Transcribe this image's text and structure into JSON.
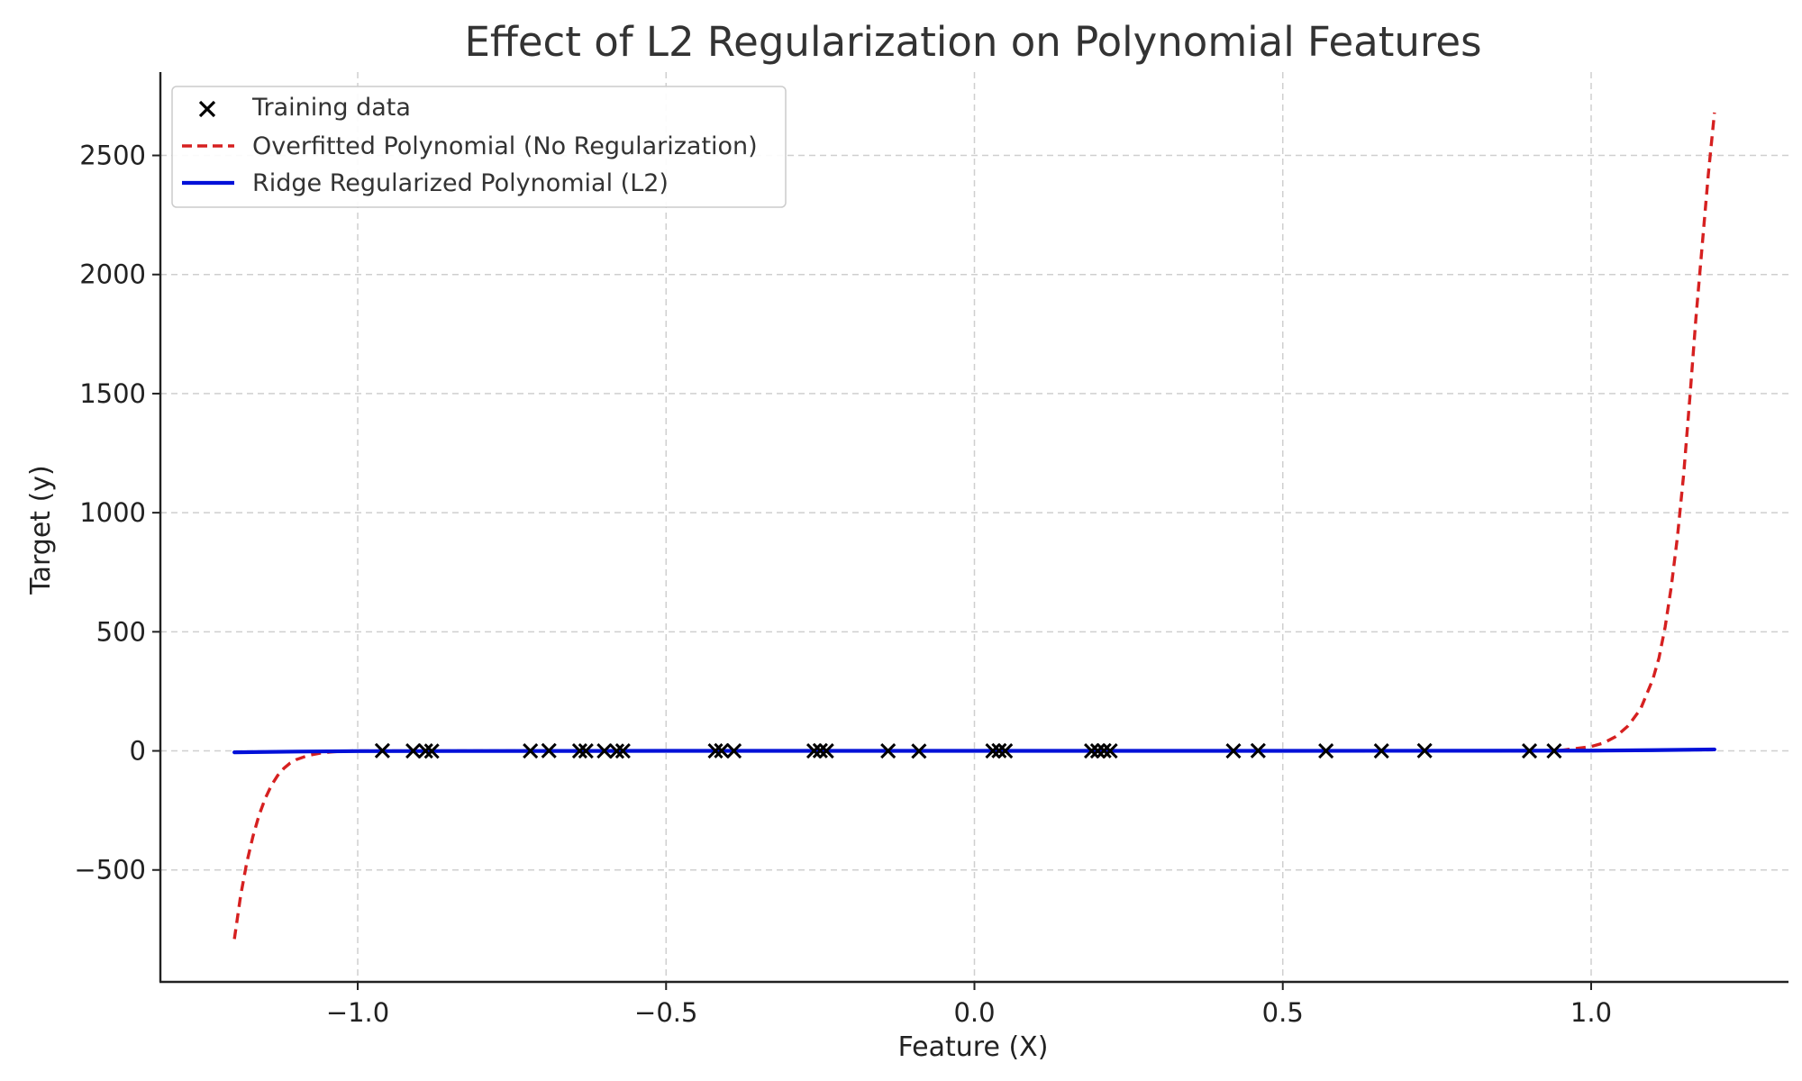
{
  "chart_data": {
    "type": "line",
    "title": "Effect of L2 Regularization on Polynomial Features",
    "xlabel": "Feature (X)",
    "ylabel": "Target (y)",
    "xlim": [
      -1.32,
      1.32
    ],
    "ylim": [
      -970,
      2850
    ],
    "x_ticks": [
      -1.0,
      -0.5,
      0.0,
      0.5,
      1.0
    ],
    "x_tick_labels": [
      "−1.0",
      "−0.5",
      "0.0",
      "0.5",
      "1.0"
    ],
    "y_ticks": [
      -500,
      0,
      500,
      1000,
      1500,
      2000,
      2500
    ],
    "y_tick_labels": [
      "−500",
      "0",
      "500",
      "1000",
      "1500",
      "2000",
      "2500"
    ],
    "grid": true,
    "legend_position": "top-left",
    "series": [
      {
        "name": "Training data",
        "kind": "scatter",
        "marker": "x",
        "color": "#000000",
        "x": [
          -0.96,
          -0.91,
          -0.89,
          -0.88,
          -0.72,
          -0.69,
          -0.64,
          -0.63,
          -0.6,
          -0.58,
          -0.57,
          -0.42,
          -0.41,
          -0.39,
          -0.26,
          -0.25,
          -0.24,
          -0.14,
          -0.09,
          0.03,
          0.04,
          0.05,
          0.19,
          0.2,
          0.21,
          0.22,
          0.42,
          0.46,
          0.57,
          0.66,
          0.73,
          0.9,
          0.94
        ],
        "y": [
          1,
          0,
          0,
          -1,
          0,
          1,
          0,
          0,
          0,
          -1,
          0,
          0,
          1,
          0,
          0,
          1,
          0,
          0,
          -1,
          0,
          1,
          0,
          0,
          0,
          1,
          0,
          0,
          1,
          0,
          0,
          1,
          0,
          0
        ]
      },
      {
        "name": "Overfitted Polynomial (No Regularization)",
        "kind": "line",
        "style": "dashed",
        "color": "#d62020",
        "x": [
          -1.2,
          -1.19,
          -1.18,
          -1.17,
          -1.16,
          -1.15,
          -1.14,
          -1.13,
          -1.12,
          -1.11,
          -1.1,
          -1.08,
          -1.06,
          -1.04,
          -1.02,
          -1.0,
          -0.9,
          -0.5,
          0.0,
          0.5,
          0.9,
          0.95,
          1.0,
          1.02,
          1.04,
          1.06,
          1.08,
          1.1,
          1.11,
          1.12,
          1.13,
          1.14,
          1.15,
          1.16,
          1.17,
          1.18,
          1.19,
          1.2
        ],
        "y": [
          -790,
          -610,
          -470,
          -360,
          -270,
          -200,
          -145,
          -104,
          -74,
          -52,
          -37,
          -19,
          -9,
          -4,
          -1,
          0,
          0,
          0,
          0,
          0,
          0,
          2,
          18,
          33,
          60,
          105,
          175,
          300,
          390,
          520,
          690,
          900,
          1160,
          1480,
          1820,
          2120,
          2420,
          2680
        ]
      },
      {
        "name": "Ridge Regularized Polynomial (L2)",
        "kind": "line",
        "style": "solid",
        "color": "#0010d8",
        "x": [
          -1.2,
          -1.1,
          -1.0,
          -0.5,
          0.0,
          0.5,
          1.0,
          1.1,
          1.2
        ],
        "y": [
          -6,
          -3,
          -1,
          0,
          0,
          0,
          1,
          3,
          6
        ]
      }
    ]
  }
}
